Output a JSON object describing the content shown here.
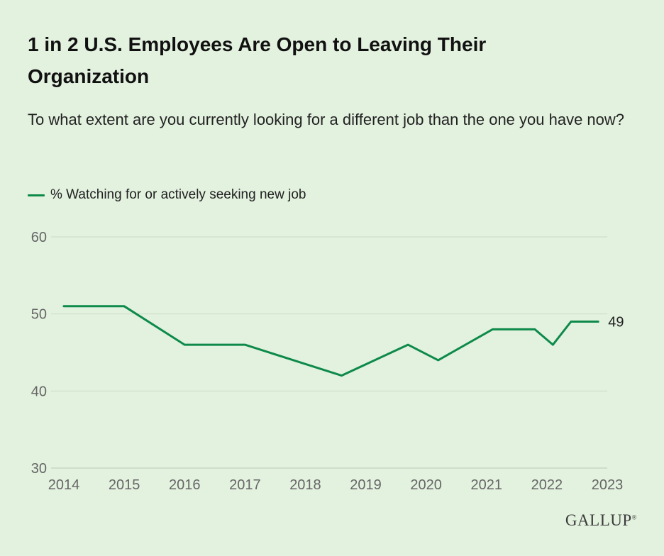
{
  "title": "1 in 2 U.S. Employees Are Open to Leaving Their Organization",
  "subtitle": "To what extent are you currently looking for a different job than the one you have now?",
  "legend": {
    "label": "% Watching for or actively seeking new job"
  },
  "logo": {
    "text": "GALLUP",
    "mark": "®"
  },
  "colors": {
    "line": "#0d8a4a",
    "grid": "#c9dcc5",
    "background": "#e3f1df",
    "tick": "#666666"
  },
  "chart_data": {
    "type": "line",
    "title": "1 in 2 U.S. Employees Are Open to Leaving Their Organization",
    "subtitle": "To what extent are you currently looking for a different job than the one you have now?",
    "xlabel": "",
    "ylabel": "",
    "ylim": [
      30,
      60
    ],
    "y_ticks": [
      30,
      40,
      50,
      60
    ],
    "xlim": [
      2014,
      2023
    ],
    "x_ticks": [
      "2014",
      "2015",
      "2016",
      "2017",
      "2018",
      "2019",
      "2020",
      "2021",
      "2022",
      "2023"
    ],
    "grid": true,
    "legend_position": "top-left",
    "series": [
      {
        "name": "% Watching for or actively seeking new job",
        "points": [
          {
            "x": 2014.0,
            "y": 51
          },
          {
            "x": 2015.0,
            "y": 51
          },
          {
            "x": 2016.0,
            "y": 46
          },
          {
            "x": 2017.0,
            "y": 46
          },
          {
            "x": 2018.6,
            "y": 42
          },
          {
            "x": 2019.7,
            "y": 46
          },
          {
            "x": 2020.2,
            "y": 44
          },
          {
            "x": 2021.1,
            "y": 48
          },
          {
            "x": 2021.8,
            "y": 48
          },
          {
            "x": 2022.1,
            "y": 46
          },
          {
            "x": 2022.4,
            "y": 49
          },
          {
            "x": 2022.85,
            "y": 49
          }
        ],
        "end_label": "49"
      }
    ]
  }
}
